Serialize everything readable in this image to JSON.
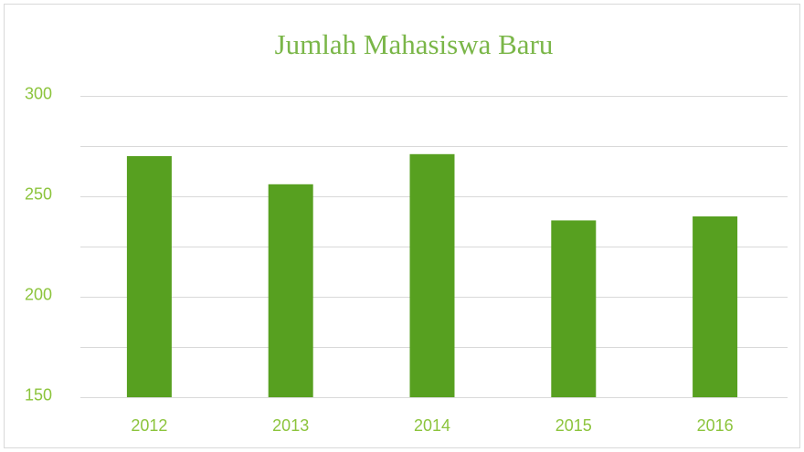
{
  "chart_data": {
    "type": "bar",
    "title": "Jumlah Mahasiswa Baru",
    "categories": [
      "2012",
      "2013",
      "2014",
      "2015",
      "2016"
    ],
    "values": [
      270,
      256,
      271,
      238,
      240
    ],
    "color": "#57a020",
    "ylim": [
      150,
      300
    ],
    "yticks": [
      150,
      200,
      250,
      300
    ],
    "minor_grid": [
      175,
      225,
      275
    ],
    "grid": true
  }
}
